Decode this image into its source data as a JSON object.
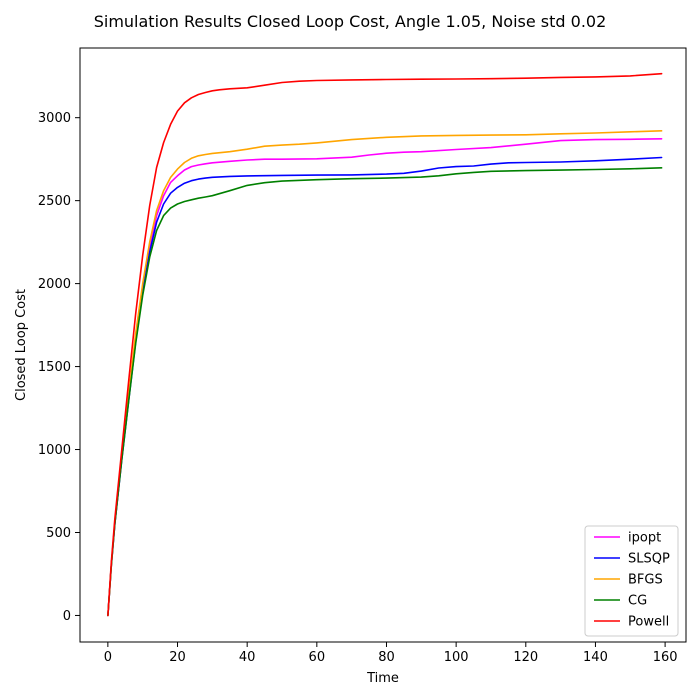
{
  "chart_data": {
    "type": "line",
    "title": "Simulation Results Closed Loop Cost, Angle 1.05, Noise std 0.02",
    "xlabel": "Time",
    "ylabel": "Closed Loop Cost",
    "xlim": [
      -8,
      166
    ],
    "ylim": [
      -160,
      3420
    ],
    "xticks": [
      0,
      20,
      40,
      60,
      80,
      100,
      120,
      140,
      160
    ],
    "yticks": [
      0,
      500,
      1000,
      1500,
      2000,
      2500,
      3000
    ],
    "grid": false,
    "legend_position": "bottom-right",
    "series": [
      {
        "name": "ipopt",
        "color": "#ff00ff",
        "x": [
          0,
          1,
          2,
          4,
          6,
          8,
          10,
          12,
          14,
          16,
          18,
          20,
          22,
          24,
          26,
          28,
          30,
          35,
          40,
          45,
          50,
          60,
          70,
          75,
          80,
          85,
          90,
          100,
          110,
          120,
          130,
          140,
          150,
          159
        ],
        "y": [
          0,
          300,
          550,
          950,
          1320,
          1680,
          1980,
          2220,
          2410,
          2530,
          2610,
          2650,
          2685,
          2705,
          2715,
          2722,
          2728,
          2737,
          2745,
          2750,
          2750,
          2752,
          2762,
          2775,
          2786,
          2792,
          2795,
          2808,
          2820,
          2840,
          2862,
          2868,
          2870,
          2873
        ]
      },
      {
        "name": "SLSQP",
        "color": "#0000ff",
        "x": [
          0,
          1,
          2,
          4,
          6,
          8,
          10,
          12,
          14,
          16,
          18,
          20,
          22,
          24,
          26,
          28,
          30,
          35,
          40,
          50,
          60,
          70,
          80,
          85,
          90,
          95,
          100,
          105,
          110,
          115,
          120,
          130,
          140,
          150,
          159
        ],
        "y": [
          0,
          300,
          550,
          940,
          1300,
          1650,
          1950,
          2190,
          2370,
          2480,
          2545,
          2580,
          2605,
          2620,
          2630,
          2636,
          2641,
          2646,
          2649,
          2652,
          2654,
          2655,
          2660,
          2665,
          2678,
          2697,
          2705,
          2709,
          2720,
          2728,
          2730,
          2733,
          2740,
          2750,
          2760
        ]
      },
      {
        "name": "BFGS",
        "color": "#ffa500",
        "x": [
          0,
          1,
          2,
          4,
          6,
          8,
          10,
          12,
          14,
          16,
          18,
          20,
          22,
          24,
          26,
          28,
          30,
          35,
          40,
          45,
          50,
          55,
          60,
          70,
          80,
          90,
          100,
          110,
          120,
          130,
          140,
          150,
          159
        ],
        "y": [
          0,
          300,
          560,
          960,
          1340,
          1700,
          2000,
          2250,
          2440,
          2560,
          2640,
          2690,
          2730,
          2755,
          2770,
          2778,
          2785,
          2795,
          2810,
          2828,
          2835,
          2840,
          2848,
          2868,
          2882,
          2890,
          2893,
          2895,
          2897,
          2903,
          2908,
          2915,
          2921
        ]
      },
      {
        "name": "CG",
        "color": "#008000",
        "x": [
          0,
          1,
          2,
          4,
          6,
          8,
          10,
          12,
          14,
          16,
          18,
          20,
          22,
          24,
          26,
          28,
          30,
          35,
          40,
          45,
          50,
          60,
          70,
          80,
          90,
          95,
          100,
          105,
          110,
          120,
          130,
          140,
          150,
          159
        ],
        "y": [
          0,
          300,
          550,
          940,
          1300,
          1640,
          1930,
          2160,
          2320,
          2410,
          2455,
          2480,
          2495,
          2505,
          2515,
          2522,
          2530,
          2560,
          2592,
          2608,
          2618,
          2626,
          2632,
          2636,
          2642,
          2650,
          2662,
          2670,
          2677,
          2681,
          2684,
          2688,
          2692,
          2698
        ]
      },
      {
        "name": "Powell",
        "color": "#ff0000",
        "x": [
          0,
          1,
          2,
          4,
          6,
          8,
          10,
          12,
          14,
          16,
          18,
          20,
          22,
          24,
          26,
          28,
          30,
          32,
          35,
          40,
          45,
          50,
          55,
          60,
          70,
          80,
          90,
          100,
          110,
          120,
          130,
          140,
          150,
          159
        ],
        "y": [
          0,
          320,
          580,
          1000,
          1420,
          1820,
          2170,
          2470,
          2700,
          2850,
          2960,
          3040,
          3090,
          3120,
          3140,
          3152,
          3162,
          3168,
          3174,
          3180,
          3196,
          3212,
          3220,
          3224,
          3228,
          3230,
          3232,
          3233,
          3235,
          3238,
          3243,
          3246,
          3252,
          3265
        ]
      }
    ]
  }
}
